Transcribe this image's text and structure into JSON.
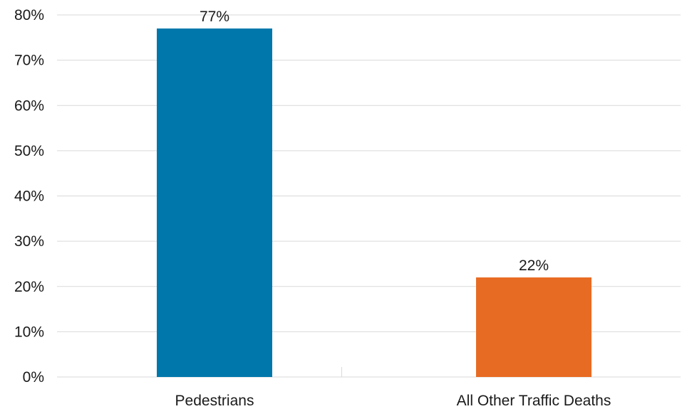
{
  "chart_data": {
    "type": "bar",
    "categories": [
      "Pedestrians",
      "All Other Traffic Deaths"
    ],
    "values": [
      77,
      22
    ],
    "data_labels": [
      "77%",
      "22%"
    ],
    "bar_colors": [
      "#0077ab",
      "#e86b23"
    ],
    "ylim": [
      0,
      80
    ],
    "yticks": [
      0,
      10,
      20,
      30,
      40,
      50,
      60,
      70,
      80
    ],
    "ytick_labels": [
      "0%",
      "10%",
      "20%",
      "30%",
      "40%",
      "50%",
      "60%",
      "70%",
      "80%"
    ],
    "grid": true,
    "legend": "none"
  }
}
